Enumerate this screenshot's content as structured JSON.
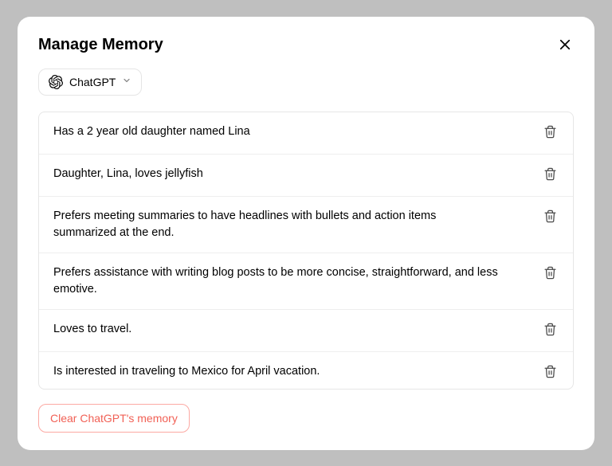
{
  "modal": {
    "title": "Manage Memory",
    "selector": {
      "label": "ChatGPT"
    },
    "memories": [
      {
        "text": "Has a 2 year old daughter named Lina"
      },
      {
        "text": "Daughter, Lina, loves jellyfish"
      },
      {
        "text": "Prefers meeting summaries to have headlines with bullets and action items summarized at the end."
      },
      {
        "text": "Prefers assistance with writing blog posts to be more concise, straightforward, and less emotive."
      },
      {
        "text": "Loves to travel."
      },
      {
        "text": "Is interested in traveling to Mexico for April vacation."
      },
      {
        "text": " "
      }
    ],
    "clear_button": "Clear ChatGPT's memory"
  },
  "colors": {
    "background": "#bfbfbf",
    "modal_bg": "#ffffff",
    "border": "#e6e6e6",
    "divider": "#eeeeee",
    "text": "#000000",
    "trash_icon": "#4a4a4a",
    "clear_text": "#f16055",
    "clear_border": "#fca9a3",
    "scrollbar": "#c9c9c9"
  }
}
